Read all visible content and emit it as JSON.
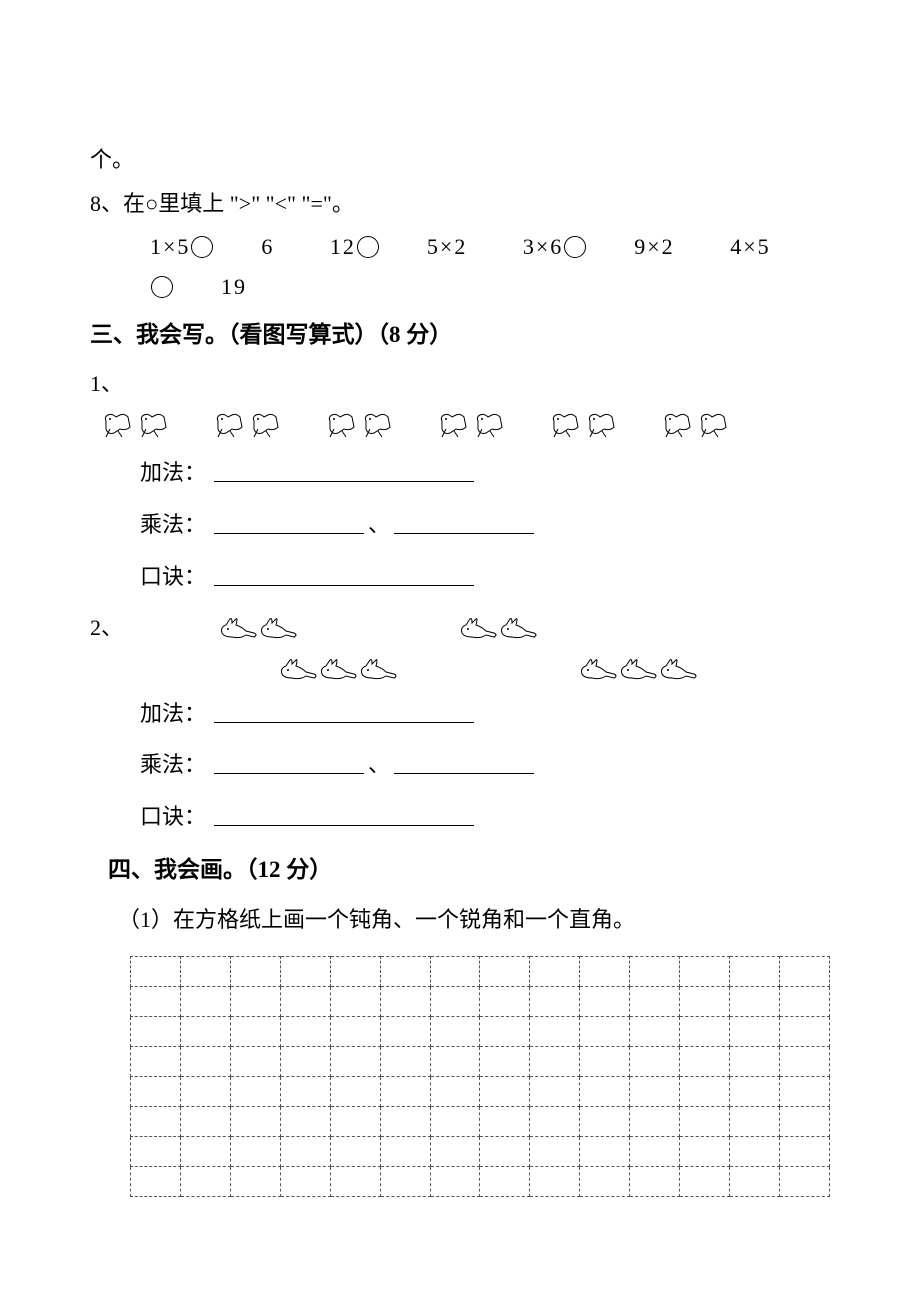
{
  "fragment_top": "个。",
  "q8": {
    "number": "8、",
    "text": "在○里填上 \">\" \"<\" \"=\"。",
    "items": [
      "1×5○6",
      "12○5×2",
      "3×6○9×2",
      "4×5○19"
    ]
  },
  "section3": {
    "title": "三、我会写。（看图写算式）（8 分）",
    "q1_number": "1、",
    "q2_number": "2、",
    "labels": {
      "addition": "加法：",
      "multiplication": "乘法：",
      "koujue": "口诀：",
      "separator": "、"
    },
    "blank_widths": {
      "long": 260,
      "short": 150
    },
    "q1_bird_groups": 6,
    "q1_birds_per_group": 2,
    "q2_top_groups": 2,
    "q2_top_per_group": 2,
    "q2_bottom_groups": 2,
    "q2_bottom_per_group": 3
  },
  "section4": {
    "title": "四、我会画。（12 分）",
    "instruction": "（1）在方格纸上画一个钝角、一个锐角和一个直角。",
    "grid_rows": 8,
    "grid_cols": 14
  },
  "colors": {
    "text": "#000000",
    "border": "#555555",
    "background": "#ffffff"
  }
}
